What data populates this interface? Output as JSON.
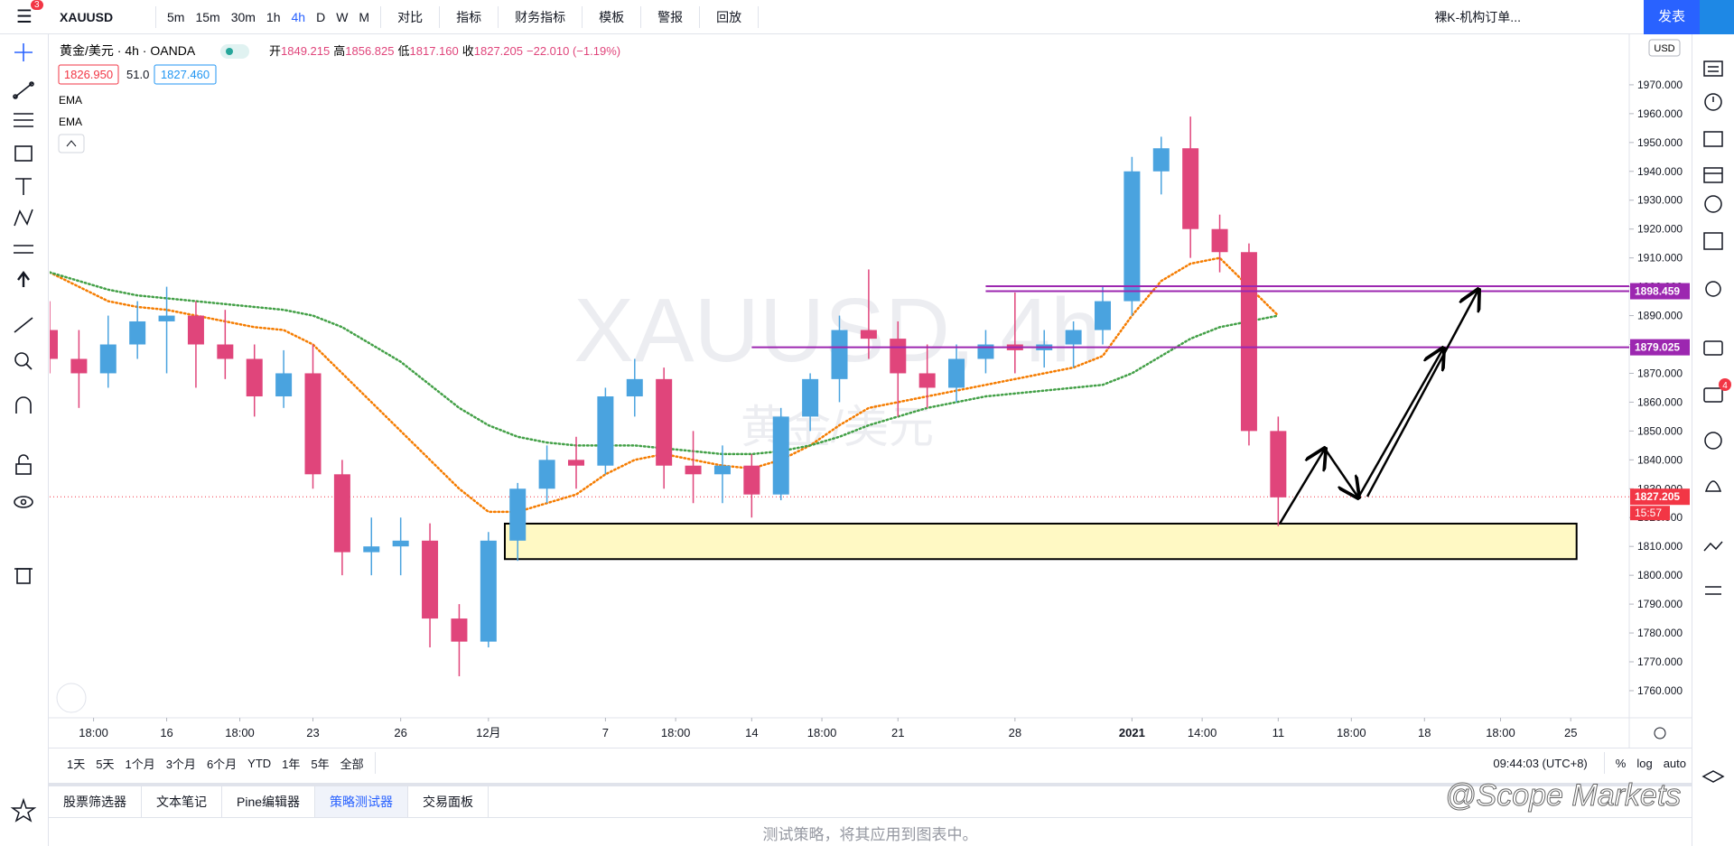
{
  "toolbar": {
    "menu_badge": "3",
    "symbol": "XAUUSD",
    "intervals": [
      "5m",
      "15m",
      "30m",
      "1h",
      "4h",
      "D",
      "W",
      "M"
    ],
    "active_interval": 4,
    "buttons": [
      "对比",
      "指标",
      "财务指标",
      "模板",
      "警报",
      "回放"
    ],
    "layout_name": "裸K-机构订单...",
    "publish": "发表"
  },
  "legend": {
    "symbol": "黄金/美元",
    "interval": "4h",
    "source": "OANDA",
    "ohlc": [
      {
        "label": "开",
        "value": "1849.215"
      },
      {
        "label": "高",
        "value": "1856.825"
      },
      {
        "label": "低",
        "value": "1817.160"
      },
      {
        "label": "收",
        "value": "1827.205"
      }
    ],
    "change": "−22.010 (−1.19%)",
    "bid": "1826.950",
    "spread": "51.0",
    "ask": "1827.460"
  },
  "watermark": {
    "title": "XAUUSD, 4h",
    "subtitle": "黄金/美元"
  },
  "chart_data": {
    "type": "candlestick",
    "x": [
      -4,
      -3,
      -2,
      -1,
      0,
      1,
      2,
      3,
      4,
      5,
      6,
      7,
      8,
      9,
      10,
      11,
      12,
      13,
      14,
      15,
      16,
      17,
      18,
      19,
      20,
      21,
      22,
      23,
      24,
      25,
      26,
      27,
      28,
      29,
      30,
      31,
      32,
      33,
      34,
      35,
      36,
      37,
      38
    ],
    "open": [
      1885,
      1875,
      1870,
      1880,
      1888,
      1890,
      1880,
      1875,
      1862,
      1870,
      1835,
      1808,
      1810,
      1812,
      1785,
      1777,
      1812,
      1830,
      1840,
      1838,
      1862,
      1868,
      1838,
      1835,
      1838,
      1828,
      1855,
      1868,
      1885,
      1882,
      1870,
      1865,
      1875,
      1880,
      1878,
      1880,
      1885,
      1895,
      1940,
      1948,
      1920,
      1912,
      1850
    ],
    "high": [
      1895,
      1885,
      1890,
      1895,
      1900,
      1895,
      1892,
      1880,
      1878,
      1880,
      1840,
      1820,
      1820,
      1818,
      1790,
      1815,
      1832,
      1845,
      1848,
      1865,
      1875,
      1872,
      1850,
      1845,
      1842,
      1858,
      1870,
      1890,
      1906,
      1888,
      1880,
      1880,
      1885,
      1898,
      1885,
      1888,
      1900,
      1945,
      1952,
      1959,
      1925,
      1915,
      1855
    ],
    "low": [
      1870,
      1858,
      1865,
      1875,
      1870,
      1865,
      1868,
      1855,
      1858,
      1830,
      1800,
      1800,
      1800,
      1775,
      1765,
      1775,
      1805,
      1825,
      1830,
      1835,
      1855,
      1830,
      1825,
      1825,
      1820,
      1826,
      1850,
      1860,
      1875,
      1855,
      1858,
      1860,
      1870,
      1870,
      1872,
      1872,
      1880,
      1890,
      1932,
      1910,
      1905,
      1845,
      1817
    ],
    "close": [
      1875,
      1870,
      1880,
      1888,
      1890,
      1880,
      1875,
      1862,
      1870,
      1835,
      1808,
      1810,
      1812,
      1785,
      1777,
      1812,
      1830,
      1840,
      1838,
      1862,
      1868,
      1838,
      1835,
      1838,
      1828,
      1855,
      1868,
      1885,
      1882,
      1870,
      1865,
      1875,
      1880,
      1878,
      1880,
      1885,
      1895,
      1940,
      1948,
      1920,
      1912,
      1850,
      1827
    ],
    "up_color": "#4aa3df",
    "down_color": "#e0457b",
    "series": [
      {
        "name": "EMA",
        "color": "#f57c00",
        "values": [
          1905,
          1900,
          1895,
          1893,
          1892,
          1890,
          1888,
          1886,
          1885,
          1880,
          1870,
          1860,
          1850,
          1840,
          1830,
          1822,
          1822,
          1825,
          1828,
          1835,
          1840,
          1842,
          1840,
          1838,
          1837,
          1840,
          1845,
          1852,
          1858,
          1860,
          1862,
          1864,
          1866,
          1868,
          1870,
          1872,
          1876,
          1890,
          1902,
          1908,
          1910,
          1900,
          1890
        ]
      },
      {
        "name": "EMA",
        "color": "#43a047",
        "values": [
          1905,
          1902,
          1899,
          1897,
          1896,
          1895,
          1894,
          1893,
          1892,
          1890,
          1886,
          1880,
          1874,
          1866,
          1858,
          1852,
          1848,
          1846,
          1845,
          1845,
          1845,
          1844,
          1843,
          1842,
          1842,
          1843,
          1845,
          1848,
          1852,
          1855,
          1858,
          1860,
          1862,
          1863,
          1864,
          1865,
          1866,
          1870,
          1876,
          1882,
          1886,
          1888,
          1890
        ]
      }
    ],
    "xlim": [
      -4,
      50
    ],
    "ylim": [
      1750.6,
      1987.5
    ],
    "xticks": [
      {
        "value": -2.5,
        "label": "18:00"
      },
      {
        "value": 0,
        "label": "16"
      },
      {
        "value": 2.5,
        "label": "18:00"
      },
      {
        "value": 5,
        "label": "23"
      },
      {
        "value": 8,
        "label": "26"
      },
      {
        "value": 11,
        "label": "12月"
      },
      {
        "value": 15,
        "label": "7"
      },
      {
        "value": 17.4,
        "label": "18:00"
      },
      {
        "value": 20,
        "label": "14"
      },
      {
        "value": 22.4,
        "label": "18:00"
      },
      {
        "value": 25,
        "label": "21"
      },
      {
        "value": 29,
        "label": "28"
      },
      {
        "value": 33,
        "label": "2021"
      },
      {
        "value": 35.4,
        "label": "14:00"
      },
      {
        "value": 38,
        "label": "11"
      },
      {
        "value": 40.5,
        "label": "18:00"
      },
      {
        "value": 43,
        "label": "18"
      },
      {
        "value": 45.6,
        "label": "18:00"
      },
      {
        "value": 48,
        "label": "25"
      }
    ],
    "yticks": [
      {
        "value": 1760,
        "label": "1760.000"
      },
      {
        "value": 1770,
        "label": "1770.000"
      },
      {
        "value": 1780,
        "label": "1780.000"
      },
      {
        "value": 1790,
        "label": "1790.000"
      },
      {
        "value": 1800,
        "label": "1800.000"
      },
      {
        "value": 1810,
        "label": "1810.000"
      },
      {
        "value": 1820,
        "label": "1820.000"
      },
      {
        "value": 1830,
        "label": "1830.000"
      },
      {
        "value": 1840,
        "label": "1840.000"
      },
      {
        "value": 1850,
        "label": "1850.000"
      },
      {
        "value": 1860,
        "label": "1860.000"
      },
      {
        "value": 1870,
        "label": "1870.000"
      },
      {
        "value": 1880,
        "label": "1880.000"
      },
      {
        "value": 1890,
        "label": "1890.000"
      },
      {
        "value": 1900,
        "label": "1900.000"
      },
      {
        "value": 1910,
        "label": "1910.000"
      },
      {
        "value": 1920,
        "label": "1920.000"
      },
      {
        "value": 1930,
        "label": "1930.000"
      },
      {
        "value": 1940,
        "label": "1940.000"
      },
      {
        "value": 1950,
        "label": "1950.000"
      },
      {
        "value": 1960,
        "label": "1960.000"
      },
      {
        "value": 1970,
        "label": "1970.000"
      }
    ],
    "levels": [
      {
        "value": 1900.2,
        "from": 28,
        "color": "#9c27b0",
        "show_label": false
      },
      {
        "value": 1898.459,
        "from": 28,
        "color": "#9c27b0",
        "show_label": true
      },
      {
        "value": 1879.025,
        "from": 20,
        "color": "#9c27b0",
        "show_label": true
      }
    ],
    "zone": {
      "x": [
        11.56,
        48.2
      ],
      "y": [
        1805.6,
        1817.9
      ],
      "color": "#fff9c4"
    },
    "last_price": 1827.205,
    "last_color": "#f23645"
  },
  "price_axis": {
    "currency": "USD",
    "countdown": "15:57"
  },
  "bottom_bar": {
    "ranges": [
      "1天",
      "5天",
      "1个月",
      "3个月",
      "6个月",
      "YTD",
      "1年",
      "5年",
      "全部"
    ],
    "clock": "09:44:03 (UTC+8)",
    "options": [
      "%",
      "log",
      "auto"
    ]
  },
  "tabs": {
    "items": [
      "股票筛选器",
      "文本笔记",
      "Pine编辑器",
      "策略测试器",
      "交易面板"
    ],
    "active": 3,
    "message": "测试策略，将其应用到图表中。"
  },
  "sidebar": {
    "chat_badge": "4"
  },
  "credit": "@Scope Markets"
}
